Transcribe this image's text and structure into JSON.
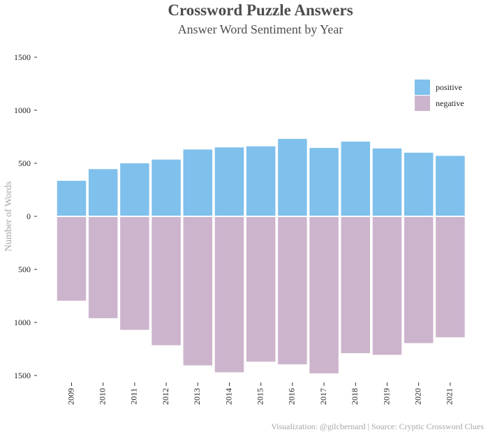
{
  "title": "Crossword Puzzle Answers",
  "subtitle": "Answer Word Sentiment by Year",
  "caption": "Visualization: @gilcbernard | Source: Cryptic Crossword Clues",
  "colors": {
    "positive": "#7fc0ec",
    "negative": "#cdb4cd",
    "text": "#4d4d4d",
    "axis_title": "#a6a6a6"
  },
  "chart_data": {
    "type": "bar",
    "stacked": "diverging",
    "categories": [
      "2009",
      "2010",
      "2011",
      "2012",
      "2013",
      "2014",
      "2015",
      "2016",
      "2017",
      "2018",
      "2019",
      "2020",
      "2021"
    ],
    "series": [
      {
        "name": "positive",
        "values": [
          335,
          445,
          500,
          535,
          630,
          650,
          660,
          730,
          645,
          705,
          640,
          600,
          570
        ]
      },
      {
        "name": "negative",
        "values": [
          -795,
          -960,
          -1070,
          -1215,
          -1405,
          -1470,
          -1370,
          -1395,
          -1480,
          -1290,
          -1305,
          -1195,
          -1140
        ]
      }
    ],
    "ylabel": "Number of Words",
    "xlabel": "",
    "ylim": [
      -1500,
      1500
    ],
    "y_ticks": [
      {
        "value": 1500,
        "label": "1500"
      },
      {
        "value": 1000,
        "label": "1000"
      },
      {
        "value": 500,
        "label": "500"
      },
      {
        "value": 0,
        "label": "0"
      },
      {
        "value": -500,
        "label": "500"
      },
      {
        "value": -1000,
        "label": "1000"
      },
      {
        "value": -1500,
        "label": "1500"
      }
    ],
    "grid": false,
    "legend_position": "top-right"
  }
}
